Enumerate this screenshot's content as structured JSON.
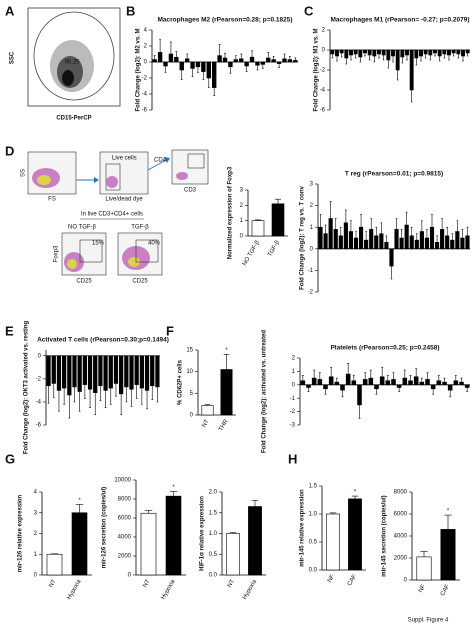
{
  "panel_labels": [
    "A",
    "B",
    "C",
    "D",
    "E",
    "F",
    "G",
    "H"
  ],
  "flow": {
    "a": {
      "y_label": "SSC",
      "x_label": "CD15-PerCP",
      "gate": "96.25"
    },
    "d": {
      "fs": "FS",
      "ss": "SS",
      "live": "Live cells",
      "dye": "Live/dead dye",
      "cd4": "CD4",
      "cd3": "CD3",
      "gated": "In live CD3+CD4+ cells",
      "no_tgf": "NO TGF-β",
      "tgf": "TGF-β",
      "pct1": "15%",
      "pct2": "40%",
      "foxp3": "Foxp3",
      "cd25": "CD25"
    }
  },
  "footer": "Suppl. Figure 4",
  "chart_data": [
    {
      "type": "bar",
      "title": "Macrophages M2 (rPearson=0.28; p=0.1825)",
      "ylabel": "Fold Change (log2): M2 vs. M",
      "color": "#000000",
      "values": [
        0.3,
        1.2,
        -0.5,
        1.0,
        0.6,
        -1.0,
        0.4,
        -0.8,
        -0.6,
        -1.2,
        -2.0,
        -3.2,
        0.8,
        0.5,
        -0.6,
        0.3,
        0.4,
        -0.5,
        0.6,
        -0.4,
        -0.3,
        0.5,
        0.3,
        -0.2,
        0.4,
        0.3,
        0.2
      ],
      "errors": [
        0.5,
        1.6,
        0.8,
        1.5,
        0.7,
        1.2,
        0.6,
        1.0,
        0.7,
        1.0,
        1.2,
        1.0,
        1.4,
        0.6,
        0.8,
        0.5,
        0.6,
        0.7,
        0.8,
        0.6,
        0.5,
        0.7,
        0.4,
        0.5,
        0.6,
        0.4,
        0.3
      ],
      "ylim": [
        -6,
        4
      ],
      "yticks": [
        -6,
        -4,
        -2,
        0,
        2,
        4
      ]
    },
    {
      "type": "bar",
      "title": "Macrophages M1 (rPearson= -0.27; p=0.2079)",
      "ylabel": "Fold Change (log2): M1 vs. M",
      "color": "#000000",
      "values": [
        -0.4,
        -0.6,
        -0.3,
        -0.8,
        -0.5,
        -0.4,
        -0.7,
        -0.3,
        -0.5,
        -0.6,
        -0.4,
        -0.5,
        -1.0,
        -0.6,
        -2.0,
        -0.7,
        -0.5,
        -4.0,
        -0.8,
        -0.6,
        -0.4,
        -0.5,
        -0.3,
        -0.6,
        -0.4,
        -0.5,
        -0.3,
        -0.4,
        -0.6,
        -0.3
      ],
      "errors": [
        0.4,
        0.5,
        0.4,
        0.6,
        0.5,
        0.4,
        0.5,
        0.3,
        0.5,
        0.6,
        0.4,
        0.5,
        0.8,
        0.6,
        1.0,
        0.6,
        0.5,
        1.2,
        0.7,
        0.5,
        0.4,
        0.5,
        0.3,
        0.5,
        0.4,
        0.5,
        0.3,
        0.4,
        0.5,
        0.3
      ],
      "ylim": [
        -6,
        2
      ],
      "yticks": [
        -6,
        -4,
        -2,
        0,
        2
      ]
    },
    {
      "type": "bar",
      "ylabel": "Normalized expression of Foxp3",
      "categories": [
        "NO TGF-β",
        "TGF-β"
      ],
      "colors": [
        "#ffffff",
        "#000000"
      ],
      "values": [
        1,
        2.1
      ],
      "errors": [
        0.05,
        0.3
      ],
      "ylim": [
        0,
        3
      ],
      "yticks": [
        0,
        1,
        2,
        3
      ]
    },
    {
      "type": "bar",
      "title": "T reg (rPearson=0.01; p=0.9815)",
      "ylabel": "Fold Change (log2): T reg vs. T conv",
      "color": "#000000",
      "values": [
        1.0,
        0.7,
        1.4,
        0.9,
        0.6,
        1.2,
        0.8,
        0.5,
        1.0,
        0.4,
        0.9,
        0.6,
        0.7,
        0.3,
        -0.8,
        0.9,
        0.5,
        1.1,
        0.6,
        0.4,
        0.8,
        0.5,
        1.0,
        0.3,
        0.9,
        0.6,
        0.4,
        0.8,
        0.5,
        0.6
      ],
      "errors": [
        0.6,
        0.4,
        0.8,
        0.5,
        0.4,
        0.6,
        0.5,
        0.3,
        0.6,
        0.4,
        0.5,
        0.4,
        0.5,
        0.3,
        0.6,
        0.5,
        0.4,
        0.6,
        0.4,
        0.3,
        0.5,
        0.4,
        0.6,
        0.3,
        0.5,
        0.4,
        0.3,
        0.5,
        0.4,
        0.4
      ],
      "ylim": [
        -2,
        3
      ],
      "yticks": [
        -2,
        -1,
        0,
        1,
        2,
        3
      ]
    },
    {
      "type": "bar",
      "title": "Activated T cells (rPearson=0.30;p=0.1494)",
      "ylabel": "Fold Change (log2): OKT3 activated vs. resting",
      "color": "#000000",
      "values": [
        -2.6,
        -2.4,
        -3.0,
        -2.8,
        -3.4,
        -2.7,
        -3.1,
        -2.5,
        -2.9,
        -3.2,
        -2.6,
        -3.0,
        -2.8,
        -2.4,
        -3.3,
        -2.7,
        -2.9,
        -2.5,
        -2.8,
        -3.0,
        -2.6,
        -2.7
      ],
      "errors": [
        1.5,
        1.2,
        1.8,
        1.4,
        2.0,
        1.3,
        1.7,
        1.2,
        1.6,
        1.9,
        1.3,
        1.5,
        1.4,
        1.1,
        1.8,
        1.3,
        1.5,
        1.2,
        1.4,
        1.6,
        1.2,
        1.3
      ],
      "ylim": [
        -6,
        0.5
      ],
      "yticks": [
        -6,
        -4,
        -2,
        0
      ]
    },
    {
      "type": "bar",
      "ylabel": "% CD62P+ cells",
      "categories": [
        "NT",
        "THR"
      ],
      "colors": [
        "#ffffff",
        "#000000"
      ],
      "values": [
        2.2,
        10.5
      ],
      "errors": [
        0.2,
        3.5
      ],
      "annotation": "*",
      "ylim": [
        0,
        15
      ],
      "yticks": [
        0,
        5,
        10,
        15
      ]
    },
    {
      "type": "bar",
      "title": "Platelets (rPearson=0.25; p=0.2458)",
      "ylabel": "Fold Change (log2): activated vs. untreated",
      "color": "#000000",
      "values": [
        0.3,
        -0.2,
        0.5,
        0.4,
        -0.3,
        0.6,
        0.2,
        -0.4,
        0.8,
        0.3,
        -1.5,
        0.4,
        0.5,
        -0.3,
        0.6,
        0.3,
        0.4,
        -0.2,
        0.5,
        0.3,
        0.6,
        0.2,
        0.4,
        -0.3,
        0.3,
        0.2,
        -0.4,
        0.3,
        0.2,
        -0.2
      ],
      "errors": [
        0.4,
        0.3,
        0.6,
        0.5,
        0.4,
        0.7,
        0.3,
        0.5,
        0.8,
        0.4,
        1.0,
        0.5,
        0.6,
        0.4,
        0.7,
        0.4,
        0.5,
        0.3,
        0.6,
        0.4,
        0.6,
        0.3,
        0.5,
        0.4,
        0.4,
        0.3,
        0.5,
        0.4,
        0.3,
        0.3
      ],
      "ylim": [
        -3,
        2
      ],
      "yticks": [
        -3,
        -2,
        -1,
        0,
        1,
        2
      ]
    },
    {
      "type": "bar",
      "ylabel": "mir-126 relative expression",
      "categories": [
        "NT",
        "Hypoxia"
      ],
      "colors": [
        "#ffffff",
        "#000000"
      ],
      "values": [
        1,
        3
      ],
      "errors": [
        0.02,
        0.4
      ],
      "annotation": "*",
      "ylim": [
        0,
        4
      ],
      "yticks": [
        0,
        1,
        2,
        3,
        4
      ]
    },
    {
      "type": "bar",
      "ylabel": "mir-126 secretion (copies/ul)",
      "categories": [
        "NT",
        "Hypoxia"
      ],
      "colors": [
        "#ffffff",
        "#000000"
      ],
      "values": [
        6500,
        8300
      ],
      "errors": [
        300,
        500
      ],
      "annotation": "*",
      "ylim": [
        0,
        10000
      ],
      "yticks": [
        0,
        2000,
        4000,
        6000,
        8000,
        10000
      ]
    },
    {
      "type": "bar",
      "ylabel": "HIF-1α relative expression",
      "categories": [
        "NT",
        "Hypoxia"
      ],
      "colors": [
        "#ffffff",
        "#000000"
      ],
      "values": [
        1,
        1.65
      ],
      "errors": [
        0.02,
        0.15
      ],
      "ylim": [
        0,
        2
      ],
      "yticks": [
        {
          "value": 0,
          "label": "0.0"
        },
        {
          "value": 0.5,
          "label": "0.5"
        },
        {
          "value": 1,
          "label": "1.0"
        },
        {
          "value": 1.5,
          "label": "1.5"
        },
        {
          "value": 2,
          "label": "2.0"
        }
      ]
    },
    {
      "type": "bar",
      "ylabel": "mir-145 relative expression",
      "categories": [
        "NF",
        "CAF"
      ],
      "colors": [
        "#ffffff",
        "#000000"
      ],
      "values": [
        1,
        1.27
      ],
      "errors": [
        0.02,
        0.05
      ],
      "annotation": "*",
      "ylim": [
        0,
        1.5
      ],
      "yticks": [
        {
          "value": 0,
          "label": "0.0"
        },
        {
          "value": 0.5,
          "label": "0.5"
        },
        {
          "value": 1,
          "label": "1.0"
        },
        {
          "value": 1.5,
          "label": "1.5"
        }
      ]
    },
    {
      "type": "bar",
      "ylabel": "mir-145 secretion (copies/ul)",
      "categories": [
        "NF",
        "CAF"
      ],
      "colors": [
        "#ffffff",
        "#000000"
      ],
      "values": [
        2100,
        4600
      ],
      "errors": [
        500,
        1300
      ],
      "annotation": "*",
      "ylim": [
        0,
        8000
      ],
      "yticks": [
        0,
        2000,
        4000,
        6000,
        8000
      ]
    }
  ]
}
